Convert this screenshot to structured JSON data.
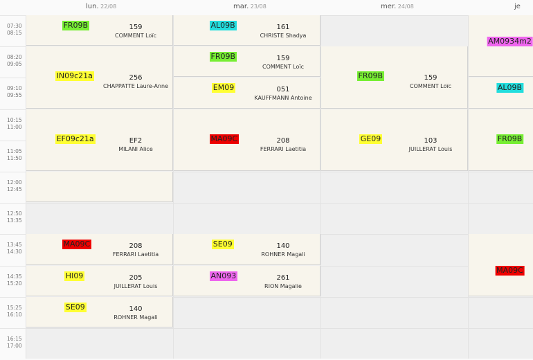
{
  "days": [
    {
      "name": "lun.",
      "date": "22/08"
    },
    {
      "name": "mar.",
      "date": "23/08"
    },
    {
      "name": "mer.",
      "date": "24/08"
    },
    {
      "name": "je",
      "date": ""
    }
  ],
  "slots": [
    {
      "start": "07:30",
      "end": "08:15"
    },
    {
      "start": "08:20",
      "end": "09:05"
    },
    {
      "start": "09:10",
      "end": "09:55"
    },
    {
      "start": "10:15",
      "end": "11:00"
    },
    {
      "start": "11:05",
      "end": "11:50"
    },
    {
      "start": "12:00",
      "end": "12:45"
    },
    {
      "start": "12:50",
      "end": "13:35"
    },
    {
      "start": "13:45",
      "end": "14:30"
    },
    {
      "start": "14:35",
      "end": "15:20"
    },
    {
      "start": "15:25",
      "end": "16:10"
    },
    {
      "start": "16:15",
      "end": "17:00"
    }
  ],
  "events": [
    {
      "day": 0,
      "slot": 0,
      "span": 1,
      "class": "FR09B",
      "color": "#77ee33",
      "room": "159",
      "teacher": "COMMENT Loïc"
    },
    {
      "day": 0,
      "slot": 1,
      "span": 2,
      "class": "IN09c21a",
      "color": "#ffff33",
      "room": "256",
      "teacher": "CHAPPATTE Laure-Anne"
    },
    {
      "day": 0,
      "slot": 3,
      "span": 2,
      "class": "EF09c21a",
      "color": "#ffff33",
      "room": "EF2",
      "teacher": "MILANI Alice"
    },
    {
      "day": 0,
      "slot": 5,
      "span": 1,
      "class": "",
      "color": "",
      "room": "",
      "teacher": ""
    },
    {
      "day": 0,
      "slot": 7,
      "span": 1,
      "class": "MA09C",
      "color": "#ee0000",
      "room": "208",
      "teacher": "FERRARI Laetitia"
    },
    {
      "day": 0,
      "slot": 8,
      "span": 1,
      "class": "HI09",
      "color": "#ffff33",
      "room": "205",
      "teacher": "JUILLERAT Louis"
    },
    {
      "day": 0,
      "slot": 9,
      "span": 1,
      "class": "SE09",
      "color": "#ffff33",
      "room": "140",
      "teacher": "ROHNER Magali"
    },
    {
      "day": 1,
      "slot": 0,
      "span": 1,
      "class": "AL09B",
      "color": "#22dddd",
      "room": "161",
      "teacher": "CHRISTE Shadya"
    },
    {
      "day": 1,
      "slot": 1,
      "span": 1,
      "class": "FR09B",
      "color": "#77ee33",
      "room": "159",
      "teacher": "COMMENT Loïc"
    },
    {
      "day": 1,
      "slot": 2,
      "span": 1,
      "class": "EM09",
      "color": "#ffff33",
      "room": "051",
      "teacher": "KAUFFMANN Antoine"
    },
    {
      "day": 1,
      "slot": 3,
      "span": 2,
      "class": "MA09C",
      "color": "#ee0000",
      "room": "208",
      "teacher": "FERRARI Laetitia"
    },
    {
      "day": 1,
      "slot": 7,
      "span": 1,
      "class": "SE09",
      "color": "#ffff33",
      "room": "140",
      "teacher": "ROHNER Magali"
    },
    {
      "day": 1,
      "slot": 8,
      "span": 1,
      "class": "AN093",
      "color": "#ee66ee",
      "room": "261",
      "teacher": "RION Magalie"
    },
    {
      "day": 2,
      "slot": 1,
      "span": 2,
      "class": "FR09B",
      "color": "#77ee33",
      "room": "159",
      "teacher": "COMMENT Loïc"
    },
    {
      "day": 2,
      "slot": 3,
      "span": 2,
      "class": "GE09",
      "color": "#ffff33",
      "room": "103",
      "teacher": "JUILLERAT Louis"
    },
    {
      "day": 3,
      "slot": 0,
      "span": 2,
      "class": "AM0934m2",
      "color": "#ee66ee",
      "room": "",
      "teacher": ""
    },
    {
      "day": 3,
      "slot": 2,
      "span": 1,
      "class": "AL09B",
      "color": "#22dddd",
      "room": "",
      "teacher": ""
    },
    {
      "day": 3,
      "slot": 3,
      "span": 2,
      "class": "FR09B",
      "color": "#77ee33",
      "room": "",
      "teacher": ""
    },
    {
      "day": 3,
      "slot": 7,
      "span": 2,
      "class": "MA09C",
      "color": "#ee0000",
      "room": "",
      "teacher": ""
    }
  ]
}
